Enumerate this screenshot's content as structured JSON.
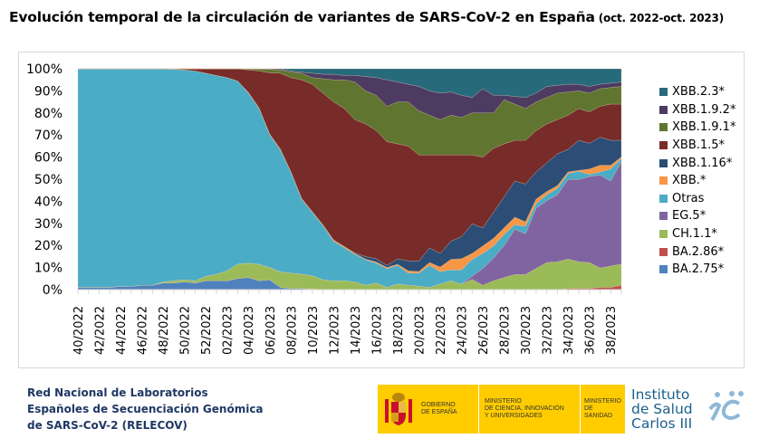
{
  "title": {
    "main": "Evolución temporal de la circulación de variantes de SARS-CoV-2 en España",
    "sub": "(oct. 2022-oct. 2023)"
  },
  "chart_data": {
    "type": "area",
    "stacked": "percent",
    "title": "Evolución temporal de la circulación de variantes de SARS-CoV-2 en España (oct. 2022-oct. 2023)",
    "xlabel": "",
    "ylabel": "",
    "ylim": [
      0,
      100
    ],
    "y_ticks": [
      "0%",
      "10%",
      "20%",
      "30%",
      "40%",
      "50%",
      "60%",
      "70%",
      "80%",
      "90%",
      "100%"
    ],
    "x_tick_labels": [
      "40/2022",
      "42/2022",
      "44/2022",
      "46/2022",
      "48/2022",
      "50/2022",
      "52/2022",
      "02/2023",
      "04/2023",
      "06/2023",
      "08/2023",
      "10/2023",
      "12/2023",
      "14/2023",
      "16/2023",
      "18/2023",
      "20/2023",
      "22/2023",
      "24/2023",
      "26/2023",
      "28/2023",
      "30/2023",
      "32/2023",
      "34/2023",
      "36/2023",
      "38/2023"
    ],
    "x": [
      "40/2022",
      "41/2022",
      "42/2022",
      "43/2022",
      "44/2022",
      "45/2022",
      "46/2022",
      "47/2022",
      "48/2022",
      "49/2022",
      "50/2022",
      "51/2022",
      "52/2022",
      "01/2023",
      "02/2023",
      "03/2023",
      "04/2023",
      "05/2023",
      "06/2023",
      "07/2023",
      "08/2023",
      "09/2023",
      "10/2023",
      "11/2023",
      "12/2023",
      "13/2023",
      "14/2023",
      "15/2023",
      "16/2023",
      "17/2023",
      "18/2023",
      "19/2023",
      "20/2023",
      "21/2023",
      "22/2023",
      "23/2023",
      "24/2023",
      "25/2023",
      "26/2023",
      "27/2023",
      "28/2023",
      "29/2023",
      "30/2023",
      "31/2023",
      "32/2023",
      "33/2023",
      "34/2023",
      "35/2023",
      "36/2023",
      "37/2023",
      "38/2023",
      "39/2023"
    ],
    "grid": false,
    "legend_position": "right",
    "series": [
      {
        "name": "BA.2.75*",
        "color": "#4f81bd",
        "values": [
          1,
          1,
          1,
          1,
          1.5,
          1.5,
          2,
          2,
          3,
          3,
          3.5,
          3,
          4,
          4,
          4,
          5,
          5.5,
          4,
          4.5,
          1,
          0.5,
          0.5,
          0.3,
          0,
          0,
          0,
          0,
          0,
          0,
          0,
          0,
          0,
          0,
          0,
          0,
          0,
          0,
          0,
          0,
          0,
          0,
          0,
          0,
          0,
          0,
          0,
          0,
          0,
          0,
          0,
          0,
          0
        ]
      },
      {
        "name": "BA.2.86*",
        "color": "#c0504d",
        "values": [
          0,
          0,
          0,
          0,
          0,
          0,
          0,
          0,
          0,
          0,
          0,
          0,
          0,
          0,
          0,
          0,
          0,
          0,
          0,
          0,
          0,
          0,
          0,
          0,
          0,
          0,
          0,
          0,
          0,
          0,
          0,
          0,
          0,
          0,
          0,
          0,
          0,
          0,
          0,
          0,
          0,
          0,
          0,
          0,
          0,
          0,
          0.5,
          0.5,
          0.5,
          1,
          1,
          2
        ]
      },
      {
        "name": "CH.1.1*",
        "color": "#9bbb59",
        "values": [
          0,
          0,
          0,
          0,
          0,
          0,
          0,
          0,
          0.5,
          1,
          1,
          1,
          2,
          3,
          4.5,
          6.5,
          6.5,
          7.5,
          5.5,
          7,
          7,
          6.5,
          6,
          4.5,
          4,
          4,
          3.5,
          2,
          3,
          1,
          2.5,
          2,
          1.6,
          1,
          2.5,
          4,
          2.5,
          4.6,
          2,
          4,
          5.5,
          6.8,
          6.8,
          9.6,
          12.3,
          12.6,
          13.4,
          12.1,
          11.8,
          8.8,
          9.7,
          9.6
        ]
      },
      {
        "name": "EG.5*",
        "color": "#8064a2",
        "values": [
          0,
          0,
          0,
          0,
          0,
          0,
          0,
          0,
          0,
          0,
          0,
          0,
          0,
          0,
          0,
          0,
          0,
          0,
          0,
          0,
          0,
          0,
          0,
          0,
          0,
          0,
          0,
          0,
          0,
          0,
          0,
          0,
          0,
          0,
          0,
          0,
          0,
          1.5,
          7.6,
          10.3,
          14.5,
          20.5,
          18.5,
          27.3,
          28,
          30.4,
          36,
          37.3,
          38.9,
          42.1,
          38.5,
          46.4
        ]
      },
      {
        "name": "Otras",
        "color": "#4bacc6",
        "values": [
          99,
          99,
          99,
          99,
          98.5,
          98.5,
          98,
          98,
          96.5,
          95.8,
          95,
          95,
          92,
          90,
          87.5,
          82.5,
          77,
          70.5,
          60,
          55,
          45.5,
          34,
          28.7,
          24.5,
          18,
          15,
          12.5,
          11.5,
          9,
          8.5,
          8.5,
          5.5,
          5.9,
          10,
          5.7,
          4.9,
          6.4,
          7.6,
          6.8,
          5.5,
          5,
          2.1,
          3.4,
          2,
          2.7,
          2.8,
          2.7,
          3.7,
          1,
          1.4,
          5.4,
          1.4
        ]
      },
      {
        "name": "XBB.*",
        "color": "#f79646",
        "values": [
          0,
          0,
          0,
          0,
          0,
          0,
          0,
          0,
          0,
          0,
          0,
          0,
          0,
          0,
          0,
          0,
          0.3,
          0.3,
          0.3,
          0.3,
          0.3,
          0.3,
          0.3,
          0.3,
          0.5,
          0.5,
          0.3,
          0.3,
          0.5,
          0.5,
          0.5,
          1,
          0.7,
          1.3,
          2,
          4.8,
          5.1,
          2.7,
          3.4,
          3.4,
          3,
          3.4,
          2,
          2.1,
          1.4,
          1.3,
          0.7,
          0.4,
          2.4,
          3,
          1.7,
          0.7
        ]
      },
      {
        "name": "XBB.1.16*",
        "color": "#2c4d75",
        "values": [
          0,
          0,
          0,
          0,
          0,
          0,
          0,
          0,
          0,
          0,
          0,
          0,
          0,
          0,
          0,
          0,
          0,
          0,
          0,
          0,
          0,
          0,
          0,
          0,
          0,
          0,
          0.3,
          1.2,
          1.5,
          1,
          2.5,
          4.5,
          4.8,
          6.6,
          6.2,
          8.2,
          10,
          13.4,
          8.2,
          11.8,
          14,
          16.4,
          17.1,
          12.3,
          13,
          14.4,
          10.2,
          13.6,
          11.7,
          12.7,
          11.3,
          7.5
        ]
      },
      {
        "name": "XBB.1.5*",
        "color": "#772c2a",
        "values": [
          0,
          0,
          0,
          0,
          0,
          0,
          0,
          0,
          0,
          0.2,
          0.5,
          1,
          2,
          3,
          4,
          5.5,
          10.2,
          16.7,
          27.7,
          34.2,
          42.7,
          53.7,
          57.7,
          59.7,
          62.5,
          62.5,
          60.4,
          60,
          58,
          56,
          52,
          52,
          48,
          42.1,
          44.6,
          39.1,
          37,
          31.2,
          32,
          29,
          24,
          18.4,
          19.8,
          18.7,
          17.6,
          15.5,
          15.5,
          14.4,
          14.2,
          14,
          16.4,
          16.4
        ]
      },
      {
        "name": "XBB.1.9.1*",
        "color": "#5f7530",
        "values": [
          0,
          0,
          0,
          0,
          0,
          0,
          0,
          0,
          0,
          0,
          0,
          0,
          0,
          0,
          0,
          0,
          0.5,
          0.8,
          1.5,
          1.5,
          2.5,
          3,
          3,
          6.5,
          10,
          13,
          17,
          15,
          16,
          16,
          19,
          20,
          20,
          18,
          16,
          18,
          17,
          19,
          20,
          16,
          20,
          16.4,
          14.4,
          13,
          12,
          12,
          10.5,
          8,
          8.5,
          8,
          7.5,
          8
        ]
      },
      {
        "name": "XBB.1.9.2*",
        "color": "#4d3b62",
        "values": [
          0,
          0,
          0,
          0,
          0,
          0,
          0,
          0,
          0,
          0,
          0,
          0,
          0,
          0,
          0,
          0,
          0,
          0.2,
          0.3,
          0.5,
          0.5,
          0.5,
          2,
          2,
          2.5,
          2,
          3,
          6.5,
          8,
          12,
          9,
          8,
          11,
          11,
          12,
          10.5,
          10,
          7,
          11,
          8,
          2,
          3.5,
          5,
          4,
          5,
          3.5,
          3.5,
          3,
          3,
          2,
          2,
          2
        ]
      },
      {
        "name": "XBB.2.3*",
        "color": "#276a7c",
        "values": [
          0,
          0,
          0,
          0,
          0,
          0,
          0,
          0,
          0,
          0,
          0,
          0,
          0,
          0,
          0,
          0,
          0,
          0,
          0,
          0,
          1,
          1.5,
          2,
          2.5,
          2.5,
          3,
          3,
          3.5,
          4,
          5,
          6,
          7,
          8,
          10,
          11,
          10.5,
          12,
          13,
          9,
          12,
          12,
          12.5,
          13,
          11,
          8,
          7.5,
          7,
          7,
          8,
          7,
          6.5,
          6
        ]
      }
    ]
  },
  "legend": [
    "XBB.2.3*",
    "XBB.1.9.2*",
    "XBB.1.9.1*",
    "XBB.1.5*",
    "XBB.1.16*",
    "XBB.*",
    "Otras",
    "EG.5*",
    "CH.1.1*",
    "BA.2.86*",
    "BA.2.75*"
  ],
  "footer": {
    "line1": "Red Nacional de Laboratorios",
    "line2": "Españoles de Secuenciación Genómica",
    "line3": "de SARS-CoV-2 (RELECOV)"
  },
  "logos": {
    "gobierno": [
      "GOBIERNO",
      "DE ESPAÑA"
    ],
    "ministerio_ciencia": [
      "MINISTERIO",
      "DE CIENCIA, INNOVACIÓN",
      "Y UNIVERSIDADES"
    ],
    "ministerio_sanidad": [
      "MINISTERIO",
      "DE SANIDAD"
    ],
    "isciii": [
      "Instituto",
      "de Salud",
      "Carlos III"
    ]
  }
}
